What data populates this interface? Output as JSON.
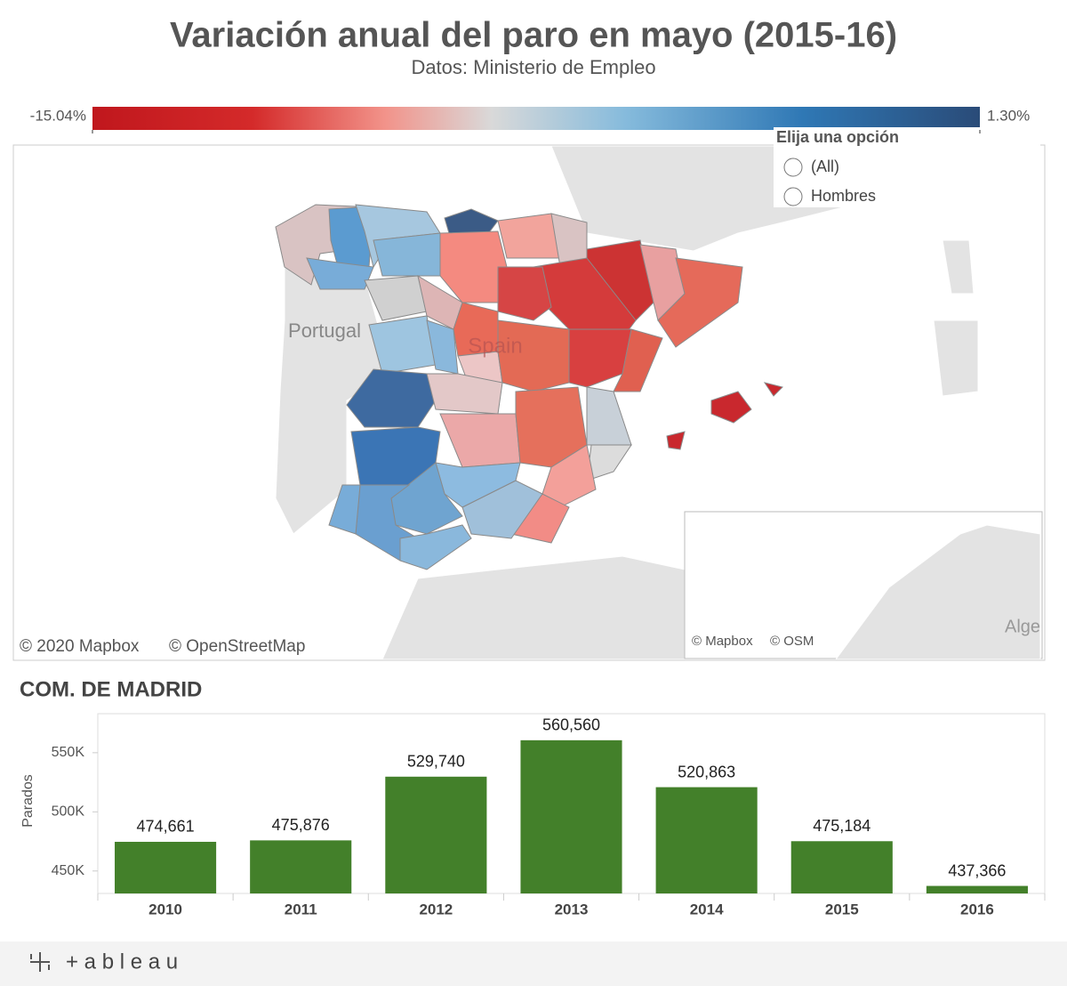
{
  "header": {
    "title": "Variación anual del paro en mayo (2015-16)",
    "subtitle": "Datos: Ministerio de Empleo"
  },
  "color_legend": {
    "min": {
      "value": -15.04,
      "label": "-15.04%"
    },
    "max": {
      "value": 1.3,
      "label": "1.30%"
    }
  },
  "map": {
    "labels": [
      "Portugal",
      "Spain",
      "Alge"
    ],
    "attribution": [
      "© 2020 Mapbox",
      "© OpenStreetMap"
    ],
    "inset_attribution": [
      "© Mapbox",
      "© OSM"
    ]
  },
  "filter": {
    "title": "Elija una opción",
    "options": [
      "(All)",
      "Hombres"
    ]
  },
  "chart_data": {
    "type": "bar",
    "title": "COM. DE MADRID",
    "y_label": "Parados",
    "categories": [
      "2010",
      "2011",
      "2012",
      "2013",
      "2014",
      "2015",
      "2016"
    ],
    "values": [
      474661,
      475876,
      529740,
      560560,
      520863,
      475184,
      437366
    ],
    "value_labels": [
      "474,661",
      "475,876",
      "529,740",
      "560,560",
      "520,863",
      "475,184",
      "437,366"
    ],
    "color": "#43802a",
    "ylim": [
      431000,
      583000
    ],
    "yticks": [
      {
        "value": 450000,
        "label": "450K"
      },
      {
        "value": 500000,
        "label": "500K"
      },
      {
        "value": 550000,
        "label": "550K"
      }
    ]
  },
  "footer": {
    "brand": "+ a b l e a u"
  }
}
